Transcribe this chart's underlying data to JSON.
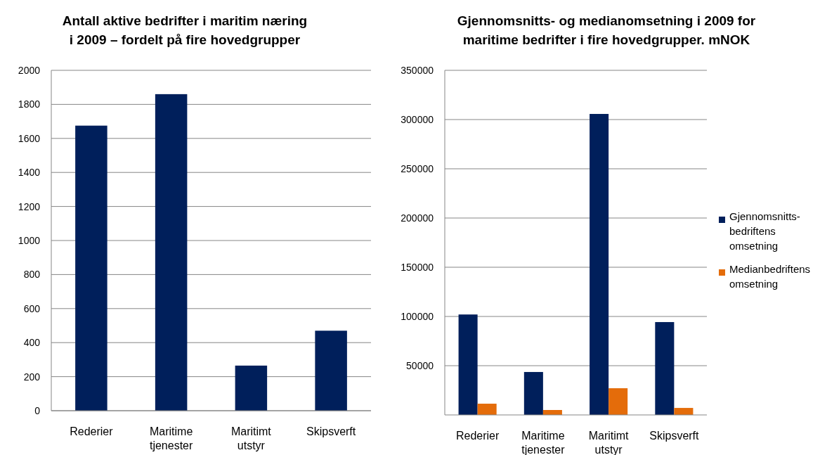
{
  "chart_data": [
    {
      "type": "bar",
      "title": "Antall aktive bedrifter i maritim næring i 2009 – fordelt på fire hovedgrupper",
      "categories": [
        "Rederier",
        "Maritime tjenester",
        "Maritimt utstyr",
        "Skipsverft"
      ],
      "series": [
        {
          "color": "#001f5b",
          "values": [
            1675,
            1860,
            265,
            470
          ]
        }
      ],
      "ylim": [
        0,
        2000
      ],
      "yticks": [
        0,
        200,
        400,
        600,
        800,
        1000,
        1200,
        1400,
        1600,
        1800,
        2000
      ],
      "grid": "y",
      "legend": false
    },
    {
      "type": "bar",
      "title": "Gjennomsnitts- og medianomsetning i 2009 for maritime bedrifter i fire hovedgrupper. mNOK",
      "categories": [
        "Rederier",
        "Maritime tjenester",
        "Maritimt utstyr",
        "Skipsverft"
      ],
      "series": [
        {
          "name": "Gjennomsnitts-bedriftens omsetning",
          "color": "#001f5b",
          "values": [
            102000,
            43600,
            305700,
            94300
          ]
        },
        {
          "name": "Medianbedriftens omsetning",
          "color": "#e46c0a",
          "values": [
            11400,
            5000,
            27100,
            7100
          ]
        }
      ],
      "ylim": [
        0,
        350000
      ],
      "yticks": [
        50000,
        100000,
        150000,
        200000,
        250000,
        300000,
        350000
      ],
      "grid": "y",
      "legend": "right"
    }
  ]
}
